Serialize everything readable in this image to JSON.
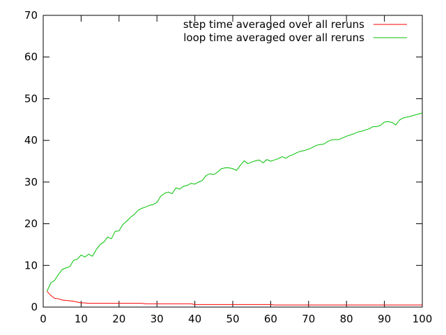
{
  "chart_data": {
    "type": "line",
    "title": "",
    "xlabel": "",
    "ylabel": "",
    "xlim": [
      0,
      100
    ],
    "ylim": [
      0,
      70
    ],
    "x_ticks": [
      0,
      10,
      20,
      30,
      40,
      50,
      60,
      70,
      80,
      90,
      100
    ],
    "y_ticks": [
      0,
      10,
      20,
      30,
      40,
      50,
      60,
      70
    ],
    "grid": false,
    "legend_position": "top-right",
    "x": [
      1,
      2,
      3,
      4,
      5,
      6,
      7,
      8,
      9,
      10,
      11,
      12,
      13,
      14,
      15,
      16,
      17,
      18,
      19,
      20,
      21,
      22,
      23,
      24,
      25,
      26,
      27,
      28,
      29,
      30,
      31,
      32,
      33,
      34,
      35,
      36,
      37,
      38,
      39,
      40,
      41,
      42,
      43,
      44,
      45,
      46,
      47,
      48,
      49,
      50,
      51,
      52,
      53,
      54,
      55,
      56,
      57,
      58,
      59,
      60,
      61,
      62,
      63,
      64,
      65,
      66,
      67,
      68,
      69,
      70,
      71,
      72,
      73,
      74,
      75,
      76,
      77,
      78,
      79,
      80,
      81,
      82,
      83,
      84,
      85,
      86,
      87,
      88,
      89,
      90,
      91,
      92,
      93,
      94,
      95,
      96,
      97,
      98,
      99,
      100
    ],
    "series": [
      {
        "name": "step time averaged over all reruns",
        "color": "#ff0000",
        "values": [
          3.8,
          2.8,
          2.1,
          2.0,
          1.7,
          1.6,
          1.5,
          1.4,
          1.2,
          1.0,
          1.0,
          0.9,
          0.9,
          0.9,
          0.9,
          0.9,
          0.9,
          0.9,
          0.9,
          0.9,
          0.9,
          0.9,
          0.9,
          0.9,
          0.9,
          0.9,
          0.8,
          0.8,
          0.8,
          0.8,
          0.8,
          0.8,
          0.8,
          0.8,
          0.8,
          0.8,
          0.8,
          0.8,
          0.8,
          0.6,
          0.6,
          0.6,
          0.6,
          0.6,
          0.6,
          0.6,
          0.6,
          0.6,
          0.6,
          0.6,
          0.6,
          0.6,
          0.6,
          0.6,
          0.6,
          0.6,
          0.6,
          0.6,
          0.6,
          0.6,
          0.5,
          0.5,
          0.5,
          0.5,
          0.5,
          0.5,
          0.5,
          0.5,
          0.5,
          0.5,
          0.5,
          0.5,
          0.5,
          0.5,
          0.5,
          0.5,
          0.5,
          0.5,
          0.5,
          0.5,
          0.5,
          0.5,
          0.5,
          0.5,
          0.5,
          0.5,
          0.5,
          0.5,
          0.5,
          0.5,
          0.5,
          0.5,
          0.5,
          0.5,
          0.5,
          0.5,
          0.5,
          0.5,
          0.5,
          0.5
        ]
      },
      {
        "name": "loop time averaged over all reruns",
        "color": "#00c000",
        "values": [
          3.8,
          5.8,
          6.4,
          7.8,
          9.0,
          9.4,
          9.7,
          11.2,
          11.5,
          12.5,
          12.0,
          12.7,
          12.2,
          13.8,
          15.0,
          15.6,
          16.8,
          16.4,
          18.2,
          18.3,
          19.8,
          20.6,
          21.5,
          22.2,
          23.2,
          23.7,
          24.0,
          24.4,
          24.6,
          25.1,
          26.6,
          27.3,
          27.6,
          27.2,
          28.6,
          28.3,
          29.0,
          29.2,
          29.7,
          29.5,
          30.0,
          30.4,
          31.6,
          32.0,
          31.8,
          32.4,
          33.2,
          33.4,
          33.4,
          33.2,
          32.8,
          34.0,
          35.1,
          34.4,
          34.8,
          35.1,
          35.3,
          34.6,
          35.4,
          35.0,
          35.3,
          35.6,
          36.1,
          35.7,
          36.3,
          36.6,
          37.1,
          37.4,
          37.6,
          37.9,
          38.3,
          38.8,
          39.0,
          39.1,
          39.7,
          40.1,
          40.2,
          40.2,
          40.6,
          41.0,
          41.3,
          41.6,
          42.0,
          42.2,
          42.5,
          42.8,
          43.3,
          43.3,
          43.6,
          44.4,
          44.5,
          44.3,
          43.7,
          44.9,
          45.4,
          45.6,
          45.8,
          46.1,
          46.3,
          46.6
        ]
      }
    ]
  }
}
